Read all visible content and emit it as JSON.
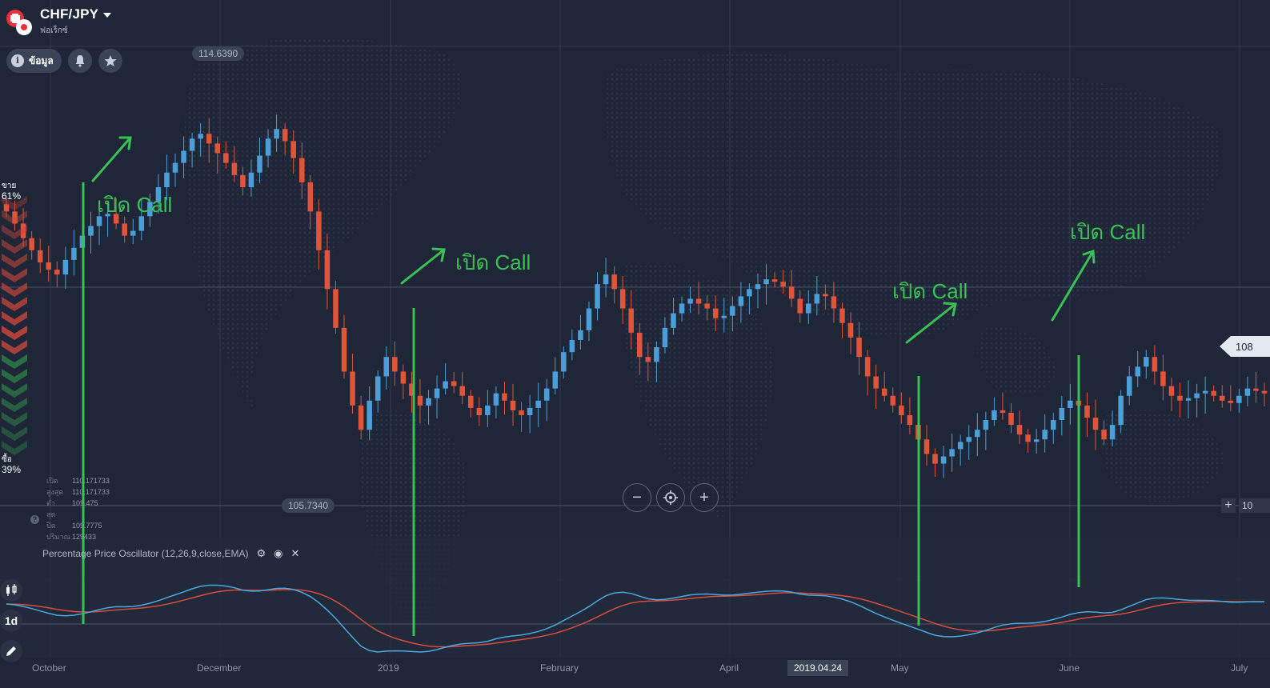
{
  "header": {
    "pair": "CHF/JPY",
    "subtitle": "ฟอเร็กซ์",
    "info_label": "ข้อมูล"
  },
  "price_tags": {
    "high": "114.6390",
    "low": "105.7340"
  },
  "sentiment": {
    "sell_label": "ขาย",
    "sell_pct": "61%",
    "buy_label": "ซื้อ",
    "buy_pct": "39%"
  },
  "ohlc": [
    {
      "label": "เปิด",
      "value": "110.171733"
    },
    {
      "label": "สูงสุด",
      "value": "110.171733"
    },
    {
      "label": "ต่ำสุด",
      "value": "109.475"
    },
    {
      "label": "ปิด",
      "value": "109.7775"
    },
    {
      "label": "ปริมาณ",
      "value": "129433"
    }
  ],
  "oscillator": {
    "title": "Percentage Price Oscillator (12,26,9,close,EMA)"
  },
  "timeframe": "1d",
  "x_axis": [
    {
      "label": "October"
    },
    {
      "label": "December"
    },
    {
      "label": "2019"
    },
    {
      "label": "February"
    },
    {
      "label": "April"
    },
    {
      "label": "May"
    },
    {
      "label": "June"
    },
    {
      "label": "July"
    }
  ],
  "cursor_date": "2019.04.24",
  "right_axis": {
    "current_price": "108",
    "next_label": "10"
  },
  "annotations": [
    {
      "text": "เปิด Call"
    },
    {
      "text": "เปิด Call"
    },
    {
      "text": "เปิด Call"
    },
    {
      "text": "เปิด Call"
    }
  ],
  "colors": {
    "up": "#4a9fd8",
    "down": "#e0543a",
    "annotation": "#39c155",
    "osc_fast": "#4aa8e0",
    "osc_slow": "#d84d3c",
    "background": "#1f2637"
  },
  "chart_data": {
    "type": "candlestick",
    "title": "CHF/JPY",
    "ylim": [
      105.734,
      114.639
    ],
    "close": [
      111.6,
      111.35,
      111.05,
      110.8,
      110.55,
      110.4,
      110.3,
      110.6,
      110.85,
      111.1,
      111.3,
      111.5,
      111.55,
      111.35,
      111.1,
      111.2,
      111.5,
      111.8,
      112.1,
      112.4,
      112.6,
      112.85,
      113.1,
      113.2,
      113.0,
      112.8,
      112.6,
      112.35,
      112.1,
      112.4,
      112.75,
      113.1,
      113.3,
      113.05,
      112.7,
      112.2,
      111.6,
      110.8,
      110.0,
      109.2,
      108.3,
      107.6,
      107.1,
      107.7,
      108.2,
      108.6,
      108.3,
      108.05,
      107.8,
      107.6,
      107.75,
      107.95,
      108.1,
      108.0,
      107.8,
      107.55,
      107.4,
      107.6,
      107.85,
      107.7,
      107.5,
      107.4,
      107.55,
      107.7,
      107.95,
      108.3,
      108.7,
      108.95,
      109.15,
      109.6,
      110.1,
      110.3,
      110.0,
      109.6,
      109.1,
      108.6,
      108.5,
      108.8,
      109.2,
      109.5,
      109.7,
      109.8,
      109.7,
      109.6,
      109.4,
      109.45,
      109.65,
      109.85,
      110.0,
      110.1,
      110.2,
      110.15,
      110.05,
      109.8,
      109.5,
      109.7,
      109.9,
      109.85,
      109.6,
      109.3,
      109.0,
      108.6,
      108.2,
      107.95,
      107.8,
      107.6,
      107.4,
      107.2,
      106.9,
      106.6,
      106.4,
      106.55,
      106.7,
      106.85,
      106.95,
      107.1,
      107.3,
      107.5,
      107.45,
      107.2,
      107.0,
      106.85,
      106.9,
      107.1,
      107.3,
      107.55,
      107.7,
      107.6,
      107.35,
      107.1,
      106.9,
      107.2,
      107.8,
      108.2,
      108.4,
      108.6,
      108.3,
      108.0,
      107.8,
      107.7,
      107.75,
      107.85,
      107.9,
      107.8,
      107.7,
      107.65,
      107.8,
      107.95,
      107.9,
      107.85
    ]
  }
}
